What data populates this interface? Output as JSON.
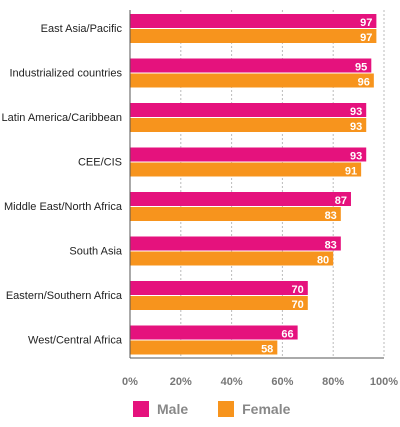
{
  "chart_data": {
    "type": "bar",
    "orientation": "horizontal",
    "categories": [
      "East Asia/Pacific",
      "Industrialized countries",
      "Latin America/Caribbean",
      "CEE/CIS",
      "Middle East/North Africa",
      "South Asia",
      "Eastern/Southern Africa",
      "West/Central Africa"
    ],
    "series": [
      {
        "name": "Male",
        "color": "#e5127d",
        "values": [
          97,
          95,
          93,
          93,
          87,
          83,
          70,
          66
        ]
      },
      {
        "name": "Female",
        "color": "#f7941d",
        "values": [
          97,
          96,
          93,
          91,
          83,
          80,
          70,
          58
        ]
      }
    ],
    "xlim": [
      0,
      100
    ],
    "xticks": [
      "0%",
      "20%",
      "40%",
      "60%",
      "80%",
      "100%"
    ],
    "grid": true,
    "legend_position": "bottom"
  }
}
